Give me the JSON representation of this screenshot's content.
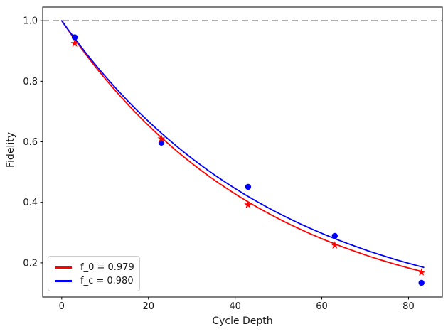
{
  "chart_data": {
    "type": "line",
    "title": "",
    "xlabel": "Cycle Depth",
    "ylabel": "Fidelity",
    "xlim": [
      -4.4,
      87.8
    ],
    "ylim": [
      0.087,
      1.045
    ],
    "xticks": [
      0,
      20,
      40,
      60,
      80
    ],
    "xtick_labels": [
      "0",
      "20",
      "40",
      "60",
      "80"
    ],
    "yticks": [
      0.2,
      0.4,
      0.6,
      0.8,
      1.0
    ],
    "ytick_labels": [
      "0.2",
      "0.4",
      "0.6",
      "0.8",
      "1.0"
    ],
    "grid": false,
    "reference_line": {
      "y": 1.0,
      "style": "dashed",
      "color": "#808080"
    },
    "series": [
      {
        "name": "f_0 = 0.979",
        "color": "#ff0000",
        "marker": "star",
        "fit_curve": {
          "model": "p^x",
          "p": 0.979,
          "x_start": 0,
          "x_end": 83.5
        },
        "points": {
          "x": [
            3,
            23,
            43,
            63,
            83
          ],
          "y": [
            0.925,
            0.61,
            0.392,
            0.258,
            0.169
          ]
        }
      },
      {
        "name": "f_c = 0.980",
        "color": "#0000ff",
        "marker": "circle",
        "fit_curve": {
          "model": "p^x",
          "p": 0.98,
          "x_start": 0,
          "x_end": 83.5
        },
        "points": {
          "x": [
            3,
            23,
            43,
            63,
            83
          ],
          "y": [
            0.945,
            0.597,
            0.451,
            0.289,
            0.134
          ]
        }
      }
    ],
    "legend": {
      "position": "lower-left",
      "entries": [
        {
          "label": "f_0 = 0.979",
          "color": "#ff0000"
        },
        {
          "label": "f_c = 0.980",
          "color": "#0000ff"
        }
      ]
    }
  }
}
